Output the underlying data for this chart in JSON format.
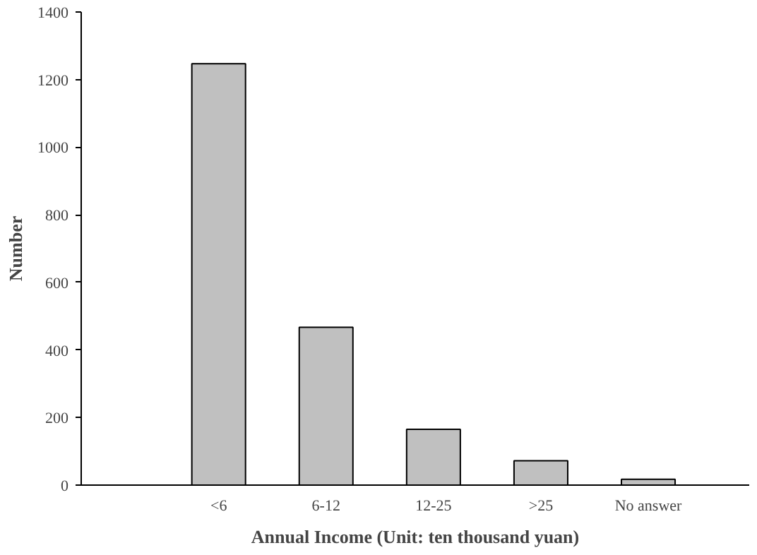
{
  "chart_data": {
    "type": "bar",
    "xlabel": "Annual Income (Unit: ten thousand yuan)",
    "ylabel": "Number",
    "categories": [
      "<6",
      "6-12",
      "12-25",
      ">25",
      "No answer"
    ],
    "values": [
      1247,
      467,
      165,
      72,
      17
    ],
    "color": "#c0c0c0",
    "ylim": [
      0,
      1400
    ],
    "yticks": [
      0,
      200,
      400,
      600,
      800,
      1000,
      1200,
      1400
    ],
    "grid": false
  }
}
